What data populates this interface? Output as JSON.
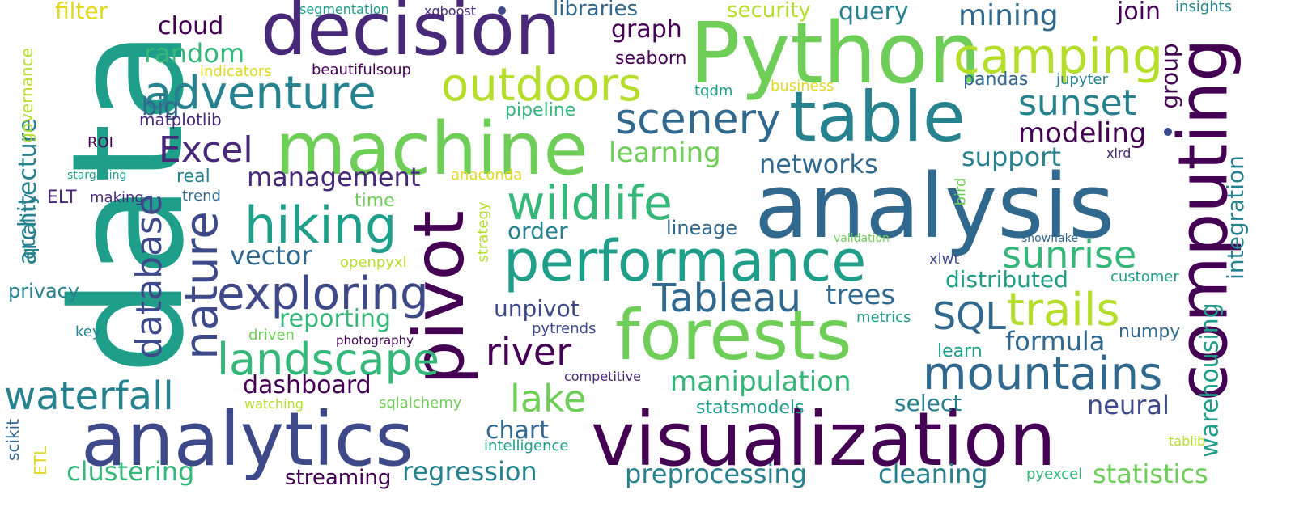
{
  "wordcloud": {
    "words": {
      "data": "data",
      "decision": "decision",
      "python": "Python",
      "camping": "camping",
      "computing": "computing",
      "machine": "machine",
      "table": "table",
      "analysis": "analysis",
      "pivot": "pivot",
      "forests": "forests",
      "performance": "performance",
      "analytics": "analytics",
      "visualization": "visualization",
      "outdoors": "outdoors",
      "adventure": "adventure",
      "wildlife": "wildlife",
      "hiking": "hiking",
      "exploring": "exploring",
      "landscape": "landscape",
      "waterfall": "waterfall",
      "nature": "nature",
      "database": "database",
      "scenery": "scenery",
      "excel": "Excel",
      "sunset": "sunset",
      "sunrise": "sunrise",
      "trails": "trails",
      "sql": "SQL",
      "tableau": "Tableau",
      "mountains": "mountains",
      "river": "river",
      "lake": "lake",
      "management": "management",
      "random": "random",
      "cloud": "cloud",
      "filter": "filter",
      "big": "big",
      "graph": "graph",
      "libraries": "libraries",
      "query": "query",
      "mining": "mining",
      "join": "join",
      "security": "security",
      "seaborn": "seaborn",
      "learning": "learning",
      "networks": "networks",
      "modeling": "modeling",
      "support": "support",
      "vector": "vector",
      "order": "order",
      "lineage": "lineage",
      "unpivot": "unpivot",
      "reporting": "reporting",
      "trees": "trees",
      "distributed": "distributed",
      "formula": "formula",
      "numpy": "numpy",
      "learn": "learn",
      "manipulation": "manipulation",
      "dashboard": "dashboard",
      "neural": "neural",
      "select": "select",
      "statsmodels": "statsmodels",
      "chart": "chart",
      "regression": "regression",
      "clustering": "clustering",
      "streaming": "streaming",
      "preprocessing": "preprocessing",
      "cleaning": "cleaning",
      "statistics": "statistics",
      "pandas": "pandas",
      "jupyter": "jupyter",
      "insights": "insights",
      "segmentation": "segmentation",
      "xgboost": "xgboost",
      "indicators": "indicators",
      "beautifulsoup": "beautifulsoup",
      "tqdm": "tqdm",
      "business": "business",
      "matplotlib": "matplotlib",
      "pipeline": "pipeline",
      "roi": "ROI",
      "stargazing": "stargazing",
      "real": "real",
      "anaconda": "anaconda",
      "elt": "ELT",
      "making": "making",
      "trend": "trend",
      "time": "time",
      "xlrd": "xlrd",
      "validation": "validation",
      "snowflake": "snowflake",
      "openpyxl": "openpyxl",
      "xlwt": "xlwt",
      "privacy": "privacy",
      "customer": "customer",
      "metrics": "metrics",
      "pytrends": "pytrends",
      "key": "key",
      "driven": "driven",
      "photography": "photography",
      "competitive": "competitive",
      "watching": "watching",
      "sqlalchemy": "sqlalchemy",
      "intelligence": "intelligence",
      "tablib": "tablib",
      "pyexcel": "pyexcel",
      "warehousing": "warehousing",
      "integration": "integration",
      "group": "group",
      "architecture": "architecture",
      "quality": "quality",
      "governance": "governance",
      "strategy": "strategy",
      "bird": "bird",
      "scikit": "scikit",
      "etl": "ETL"
    },
    "colors": {
      "deep_purple": "#440154",
      "purple": "#482878",
      "indigo": "#3e4989",
      "blue": "#31688e",
      "teal_blue": "#26828e",
      "teal": "#1f9e89",
      "green": "#35b779",
      "light_green": "#6ece58",
      "lime": "#b5de2b",
      "yellow": "#e1d81f"
    }
  }
}
